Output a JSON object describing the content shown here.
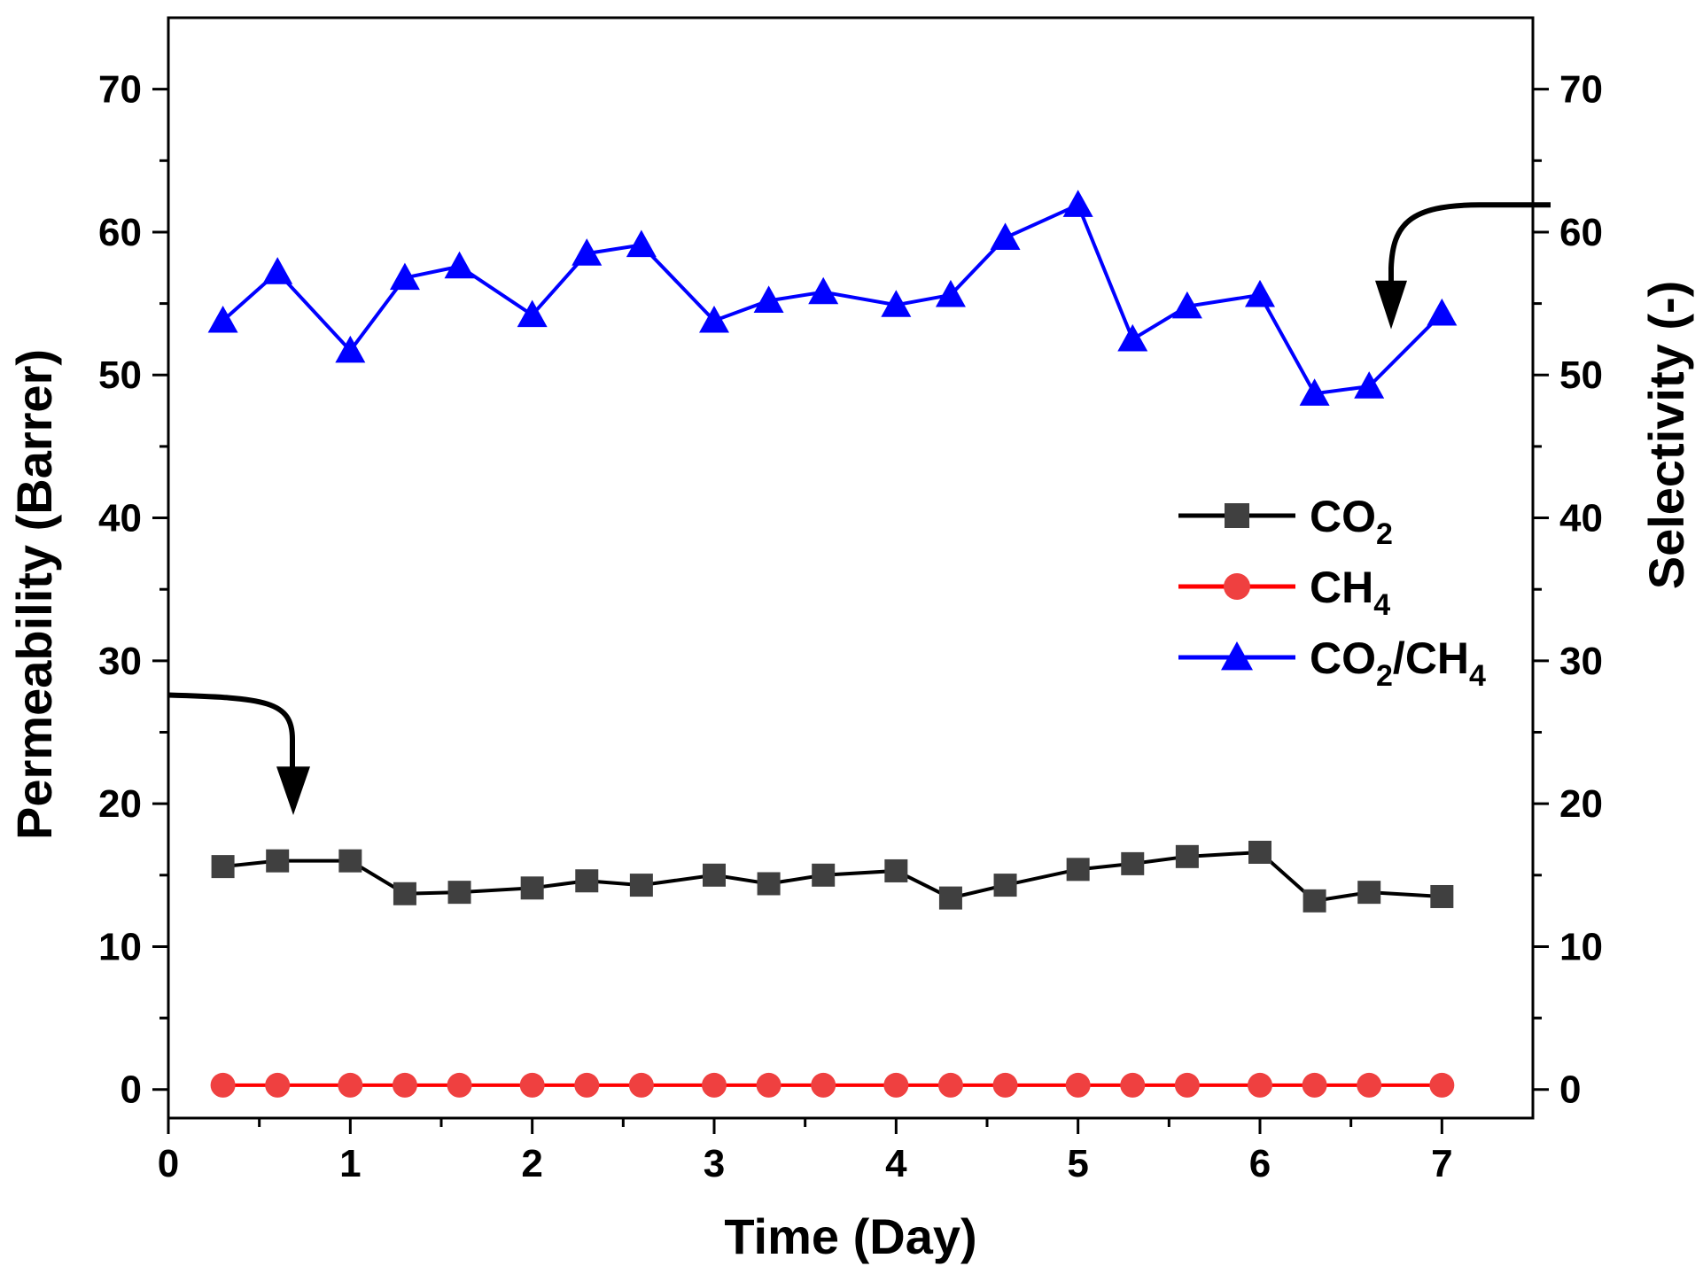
{
  "chart_data": {
    "type": "line",
    "title": "",
    "xlabel": "Time (Day)",
    "ylabel_left": "Permeability (Barrer)",
    "ylabel_right": "Selectivity (-)",
    "xlim": [
      0,
      7.5
    ],
    "ylim_left": [
      -2,
      75
    ],
    "ylim_right": [
      -2,
      75
    ],
    "x_ticks": [
      0,
      1,
      2,
      3,
      4,
      5,
      6,
      7
    ],
    "y_ticks_left": [
      0,
      10,
      20,
      30,
      40,
      50,
      60,
      70
    ],
    "y_ticks_right": [
      0,
      10,
      20,
      30,
      40,
      50,
      60,
      70
    ],
    "grid": false,
    "legend_position": "middle-right",
    "x": [
      0.3,
      0.6,
      1.0,
      1.3,
      1.6,
      2.0,
      2.3,
      2.6,
      3.0,
      3.3,
      3.6,
      4.0,
      4.3,
      4.6,
      5.0,
      5.3,
      5.6,
      6.0,
      6.3,
      6.6,
      7.0
    ],
    "series": [
      {
        "name": "CO2",
        "legend_main": "CO",
        "legend_sub": "2",
        "legend_tail": "",
        "axis": "left",
        "color": "#000000",
        "marker_color": "#404040",
        "marker": "square",
        "values": [
          15.6,
          16.0,
          16.0,
          13.7,
          13.8,
          14.1,
          14.6,
          14.3,
          15.0,
          14.4,
          15.0,
          15.3,
          13.4,
          14.3,
          15.4,
          15.8,
          16.3,
          16.6,
          13.2,
          13.8,
          13.5
        ]
      },
      {
        "name": "CH4",
        "legend_main": "CH",
        "legend_sub": "4",
        "legend_tail": "",
        "axis": "left",
        "color": "#ff0000",
        "marker_color": "#ef4040",
        "marker": "circle",
        "values": [
          0.3,
          0.3,
          0.3,
          0.3,
          0.3,
          0.3,
          0.3,
          0.3,
          0.3,
          0.3,
          0.3,
          0.3,
          0.3,
          0.3,
          0.3,
          0.3,
          0.3,
          0.3,
          0.3,
          0.3,
          0.3
        ]
      },
      {
        "name": "CO2/CH4",
        "legend_main": "CO",
        "legend_sub": "2",
        "legend_tail": "/CH",
        "legend_sub2": "4",
        "axis": "right",
        "color": "#0000ff",
        "marker_color": "#0000ff",
        "marker": "triangle",
        "values": [
          53.8,
          57.2,
          51.7,
          56.8,
          57.6,
          54.2,
          58.5,
          59.1,
          53.8,
          55.2,
          55.8,
          54.9,
          55.6,
          59.6,
          61.9,
          52.5,
          54.8,
          55.6,
          48.7,
          49.2,
          54.3
        ]
      }
    ]
  }
}
